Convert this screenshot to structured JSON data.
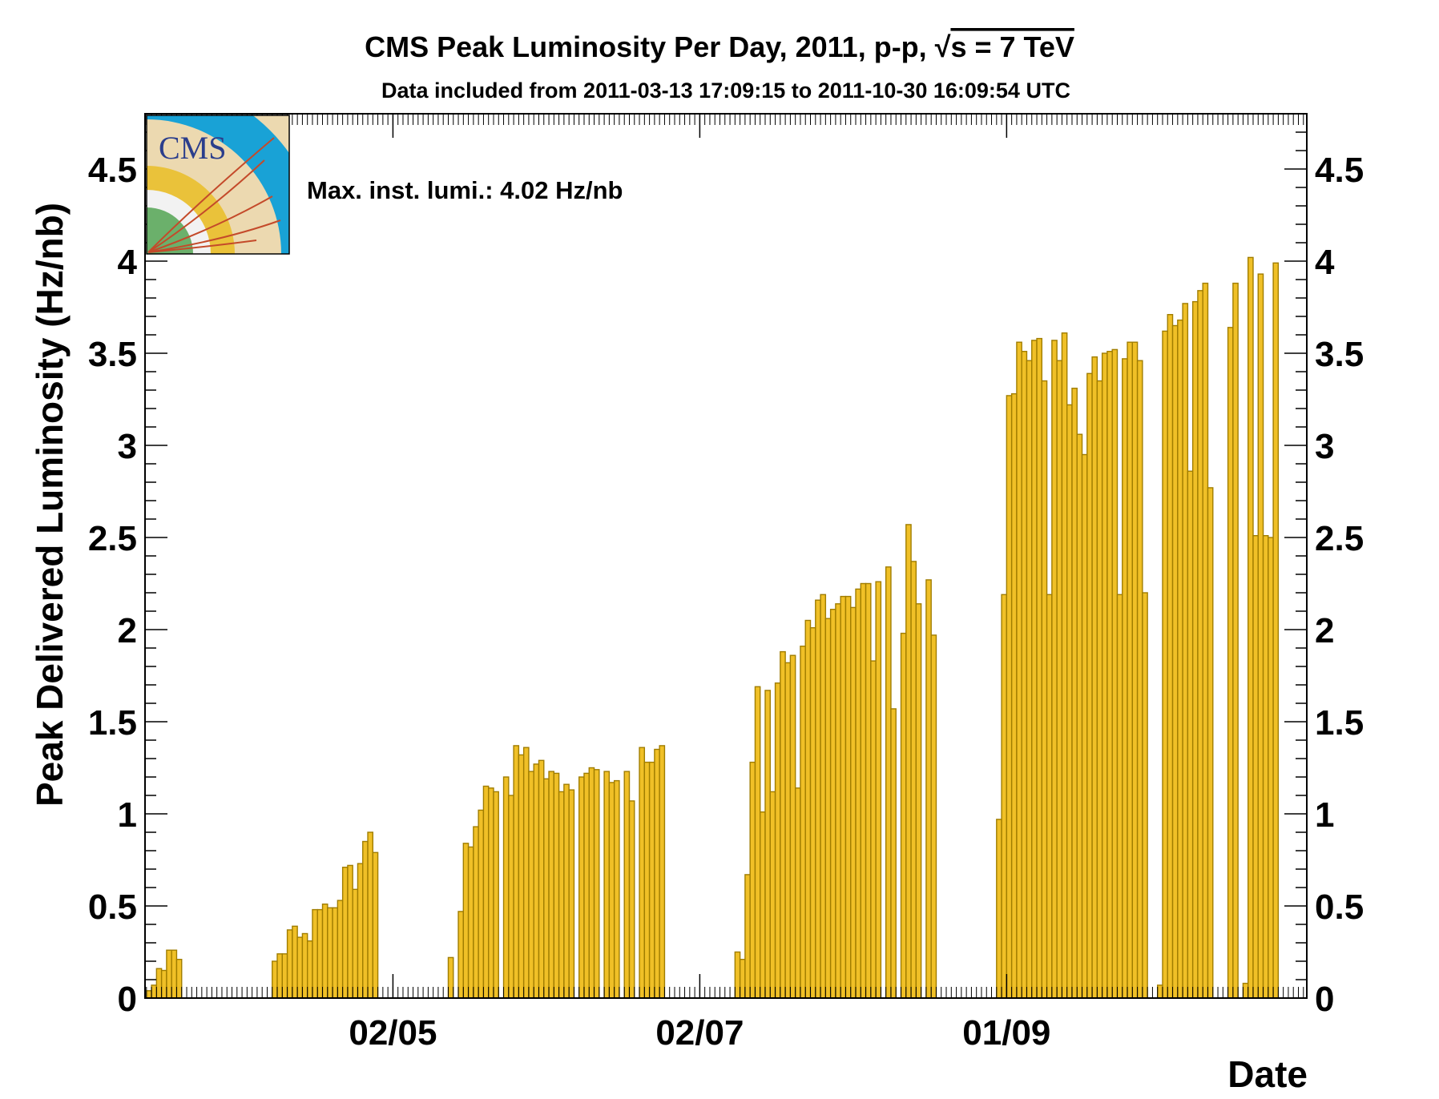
{
  "chart_data": {
    "type": "bar",
    "title": "CMS Peak Luminosity Per Day, 2011, p-p, √s = 7 TeV",
    "title_parts": {
      "main": "CMS Peak Luminosity Per Day, 2011, p-p, ",
      "sqrt_symbol": "√",
      "s_eq": "s = 7 TeV"
    },
    "subtitle": "Data included from 2011-03-13 17:09:15 to 2011-10-30 16:09:54 UTC",
    "xlabel": "Date",
    "ylabel": "Peak Delivered Luminosity (Hz/nb)",
    "annotation": "Max. inst. lumi.: 4.02 Hz/nb",
    "logo_text": "CMS",
    "ylim": [
      0,
      4.8
    ],
    "y_ticks": [
      0,
      0.5,
      1,
      1.5,
      2,
      2.5,
      3,
      3.5,
      4,
      4.5
    ],
    "y_tick_labels": [
      "0",
      "0.5",
      "1",
      "1.5",
      "2",
      "2.5",
      "3",
      "3.5",
      "4",
      "4.5"
    ],
    "x_range": [
      "2011-03-13",
      "2011-10-30"
    ],
    "x_tick_labels": [
      {
        "label": "02/05",
        "date": "2011-05-02"
      },
      {
        "label": "02/07",
        "date": "2011-07-02"
      },
      {
        "label": "01/09",
        "date": "2011-09-01"
      }
    ],
    "grid": false,
    "bar_color": "#f0c027",
    "bar_edge_color": "#a07d00",
    "days": [
      {
        "date": "2011-03-14",
        "value": 0.04
      },
      {
        "date": "2011-03-15",
        "value": 0.07
      },
      {
        "date": "2011-03-16",
        "value": 0.16
      },
      {
        "date": "2011-03-17",
        "value": 0.15
      },
      {
        "date": "2011-03-18",
        "value": 0.26
      },
      {
        "date": "2011-03-19",
        "value": 0.26
      },
      {
        "date": "2011-03-20",
        "value": 0.21
      },
      {
        "date": "2011-04-08",
        "value": 0.2
      },
      {
        "date": "2011-04-09",
        "value": 0.24
      },
      {
        "date": "2011-04-10",
        "value": 0.24
      },
      {
        "date": "2011-04-11",
        "value": 0.37
      },
      {
        "date": "2011-04-12",
        "value": 0.39
      },
      {
        "date": "2011-04-13",
        "value": 0.33
      },
      {
        "date": "2011-04-14",
        "value": 0.35
      },
      {
        "date": "2011-04-15",
        "value": 0.31
      },
      {
        "date": "2011-04-16",
        "value": 0.48
      },
      {
        "date": "2011-04-17",
        "value": 0.48
      },
      {
        "date": "2011-04-18",
        "value": 0.51
      },
      {
        "date": "2011-04-19",
        "value": 0.49
      },
      {
        "date": "2011-04-20",
        "value": 0.49
      },
      {
        "date": "2011-04-21",
        "value": 0.53
      },
      {
        "date": "2011-04-22",
        "value": 0.71
      },
      {
        "date": "2011-04-23",
        "value": 0.72
      },
      {
        "date": "2011-04-24",
        "value": 0.59
      },
      {
        "date": "2011-04-25",
        "value": 0.73
      },
      {
        "date": "2011-04-26",
        "value": 0.85
      },
      {
        "date": "2011-04-27",
        "value": 0.9
      },
      {
        "date": "2011-04-28",
        "value": 0.79
      },
      {
        "date": "2011-05-13",
        "value": 0.22
      },
      {
        "date": "2011-05-15",
        "value": 0.47
      },
      {
        "date": "2011-05-16",
        "value": 0.84
      },
      {
        "date": "2011-05-17",
        "value": 0.82
      },
      {
        "date": "2011-05-18",
        "value": 0.93
      },
      {
        "date": "2011-05-19",
        "value": 1.02
      },
      {
        "date": "2011-05-20",
        "value": 1.15
      },
      {
        "date": "2011-05-21",
        "value": 1.14
      },
      {
        "date": "2011-05-22",
        "value": 1.12
      },
      {
        "date": "2011-05-24",
        "value": 1.2
      },
      {
        "date": "2011-05-25",
        "value": 1.1
      },
      {
        "date": "2011-05-26",
        "value": 1.37
      },
      {
        "date": "2011-05-27",
        "value": 1.32
      },
      {
        "date": "2011-05-28",
        "value": 1.36
      },
      {
        "date": "2011-05-29",
        "value": 1.23
      },
      {
        "date": "2011-05-30",
        "value": 1.27
      },
      {
        "date": "2011-05-31",
        "value": 1.29
      },
      {
        "date": "2011-06-01",
        "value": 1.19
      },
      {
        "date": "2011-06-02",
        "value": 1.23
      },
      {
        "date": "2011-06-03",
        "value": 1.22
      },
      {
        "date": "2011-06-04",
        "value": 1.12
      },
      {
        "date": "2011-06-05",
        "value": 1.16
      },
      {
        "date": "2011-06-06",
        "value": 1.13
      },
      {
        "date": "2011-06-08",
        "value": 1.2
      },
      {
        "date": "2011-06-09",
        "value": 1.22
      },
      {
        "date": "2011-06-10",
        "value": 1.25
      },
      {
        "date": "2011-06-11",
        "value": 1.24
      },
      {
        "date": "2011-06-13",
        "value": 1.23
      },
      {
        "date": "2011-06-14",
        "value": 1.17
      },
      {
        "date": "2011-06-15",
        "value": 1.18
      },
      {
        "date": "2011-06-17",
        "value": 1.23
      },
      {
        "date": "2011-06-18",
        "value": 1.07
      },
      {
        "date": "2011-06-20",
        "value": 1.36
      },
      {
        "date": "2011-06-21",
        "value": 1.28
      },
      {
        "date": "2011-06-22",
        "value": 1.28
      },
      {
        "date": "2011-06-23",
        "value": 1.35
      },
      {
        "date": "2011-06-24",
        "value": 1.37
      },
      {
        "date": "2011-07-09",
        "value": 0.25
      },
      {
        "date": "2011-07-10",
        "value": 0.21
      },
      {
        "date": "2011-07-11",
        "value": 0.67
      },
      {
        "date": "2011-07-12",
        "value": 1.28
      },
      {
        "date": "2011-07-13",
        "value": 1.69
      },
      {
        "date": "2011-07-14",
        "value": 1.01
      },
      {
        "date": "2011-07-15",
        "value": 1.67
      },
      {
        "date": "2011-07-16",
        "value": 1.12
      },
      {
        "date": "2011-07-17",
        "value": 1.71
      },
      {
        "date": "2011-07-18",
        "value": 1.88
      },
      {
        "date": "2011-07-19",
        "value": 1.82
      },
      {
        "date": "2011-07-20",
        "value": 1.86
      },
      {
        "date": "2011-07-21",
        "value": 1.14
      },
      {
        "date": "2011-07-22",
        "value": 1.91
      },
      {
        "date": "2011-07-23",
        "value": 2.05
      },
      {
        "date": "2011-07-24",
        "value": 2.01
      },
      {
        "date": "2011-07-25",
        "value": 2.16
      },
      {
        "date": "2011-07-26",
        "value": 2.19
      },
      {
        "date": "2011-07-27",
        "value": 2.06
      },
      {
        "date": "2011-07-28",
        "value": 2.11
      },
      {
        "date": "2011-07-29",
        "value": 2.14
      },
      {
        "date": "2011-07-30",
        "value": 2.18
      },
      {
        "date": "2011-07-31",
        "value": 2.18
      },
      {
        "date": "2011-08-01",
        "value": 2.12
      },
      {
        "date": "2011-08-02",
        "value": 2.22
      },
      {
        "date": "2011-08-03",
        "value": 2.25
      },
      {
        "date": "2011-08-04",
        "value": 2.25
      },
      {
        "date": "2011-08-05",
        "value": 1.83
      },
      {
        "date": "2011-08-06",
        "value": 2.26
      },
      {
        "date": "2011-08-08",
        "value": 2.34
      },
      {
        "date": "2011-08-09",
        "value": 1.57
      },
      {
        "date": "2011-08-11",
        "value": 1.98
      },
      {
        "date": "2011-08-12",
        "value": 2.57
      },
      {
        "date": "2011-08-13",
        "value": 2.37
      },
      {
        "date": "2011-08-14",
        "value": 2.14
      },
      {
        "date": "2011-08-16",
        "value": 2.27
      },
      {
        "date": "2011-08-17",
        "value": 1.97
      },
      {
        "date": "2011-08-30",
        "value": 0.97
      },
      {
        "date": "2011-08-31",
        "value": 2.19
      },
      {
        "date": "2011-09-01",
        "value": 3.27
      },
      {
        "date": "2011-09-02",
        "value": 3.28
      },
      {
        "date": "2011-09-03",
        "value": 3.56
      },
      {
        "date": "2011-09-04",
        "value": 3.51
      },
      {
        "date": "2011-09-05",
        "value": 3.46
      },
      {
        "date": "2011-09-06",
        "value": 3.57
      },
      {
        "date": "2011-09-07",
        "value": 3.58
      },
      {
        "date": "2011-09-08",
        "value": 3.35
      },
      {
        "date": "2011-09-09",
        "value": 2.19
      },
      {
        "date": "2011-09-10",
        "value": 3.57
      },
      {
        "date": "2011-09-11",
        "value": 3.46
      },
      {
        "date": "2011-09-12",
        "value": 3.61
      },
      {
        "date": "2011-09-13",
        "value": 3.22
      },
      {
        "date": "2011-09-14",
        "value": 3.31
      },
      {
        "date": "2011-09-15",
        "value": 3.06
      },
      {
        "date": "2011-09-16",
        "value": 2.95
      },
      {
        "date": "2011-09-17",
        "value": 3.39
      },
      {
        "date": "2011-09-18",
        "value": 3.48
      },
      {
        "date": "2011-09-19",
        "value": 3.35
      },
      {
        "date": "2011-09-20",
        "value": 3.5
      },
      {
        "date": "2011-09-21",
        "value": 3.51
      },
      {
        "date": "2011-09-22",
        "value": 3.52
      },
      {
        "date": "2011-09-23",
        "value": 2.19
      },
      {
        "date": "2011-09-24",
        "value": 3.47
      },
      {
        "date": "2011-09-25",
        "value": 3.56
      },
      {
        "date": "2011-09-26",
        "value": 3.56
      },
      {
        "date": "2011-09-27",
        "value": 3.46
      },
      {
        "date": "2011-09-28",
        "value": 2.2
      },
      {
        "date": "2011-10-01",
        "value": 0.07
      },
      {
        "date": "2011-10-02",
        "value": 3.62
      },
      {
        "date": "2011-10-03",
        "value": 3.71
      },
      {
        "date": "2011-10-04",
        "value": 3.65
      },
      {
        "date": "2011-10-05",
        "value": 3.68
      },
      {
        "date": "2011-10-06",
        "value": 3.77
      },
      {
        "date": "2011-10-07",
        "value": 2.86
      },
      {
        "date": "2011-10-08",
        "value": 3.78
      },
      {
        "date": "2011-10-09",
        "value": 3.84
      },
      {
        "date": "2011-10-10",
        "value": 3.88
      },
      {
        "date": "2011-10-11",
        "value": 2.77
      },
      {
        "date": "2011-10-15",
        "value": 3.64
      },
      {
        "date": "2011-10-16",
        "value": 3.88
      },
      {
        "date": "2011-10-18",
        "value": 0.08
      },
      {
        "date": "2011-10-19",
        "value": 4.02
      },
      {
        "date": "2011-10-20",
        "value": 2.51
      },
      {
        "date": "2011-10-21",
        "value": 3.93
      },
      {
        "date": "2011-10-22",
        "value": 2.51
      },
      {
        "date": "2011-10-23",
        "value": 2.5
      },
      {
        "date": "2011-10-24",
        "value": 3.99
      }
    ]
  }
}
